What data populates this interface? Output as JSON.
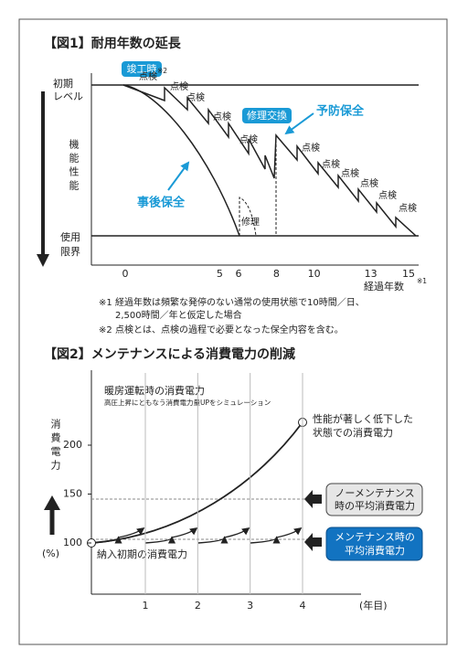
{
  "figure1": {
    "title": "【図1】耐用年数の延長",
    "initial_level": [
      "初期",
      "レベル"
    ],
    "y_label": "機能性能",
    "limit": [
      "使用",
      "限界"
    ],
    "completion": "竣工時",
    "note_mark_2": "※2",
    "inspections": [
      "点検",
      "点検",
      "点検",
      "点検",
      "点検",
      "点検",
      "点検",
      "点検",
      "点検",
      "点検",
      "点検"
    ],
    "repair_replace": "修理交換",
    "preventive": "予防保全",
    "reactive": "事後保全",
    "repair": "修理",
    "xticks": [
      0,
      5,
      6,
      8,
      10,
      13,
      15
    ],
    "x_label": "経過年数",
    "note_mark_1": "※1",
    "notes": [
      {
        "mark": "※1",
        "lines": [
          "経過年数は頻繁な発停のない通常の使用状態で10時間／日、",
          "2,500時間／年と仮定した場合"
        ]
      },
      {
        "mark": "※2",
        "lines": [
          "点検とは、点検の過程で必要となった保全内容を含む。"
        ]
      }
    ]
  },
  "figure2": {
    "title": "【図2】メンテナンスによる消費電力の削減",
    "y_label": "消費電力",
    "unit": "(%)",
    "yticks": [
      100,
      150,
      200
    ],
    "xticks": [
      1,
      2,
      3,
      4
    ],
    "x_label": "(年目)",
    "heating_title": "暖房運転時の消費電力",
    "heating_sub": "高圧上昇にともなう消費電力量UPをシミュレーション",
    "degraded": [
      "性能が著しく低下した",
      "状態での消費電力"
    ],
    "initial": "納入初期の消費電力",
    "no_maintenance": [
      "ノーメンテナンス",
      "時の平均消費電力"
    ],
    "maintenance": [
      "メンテナンス時の",
      "平均消費電力"
    ]
  }
}
